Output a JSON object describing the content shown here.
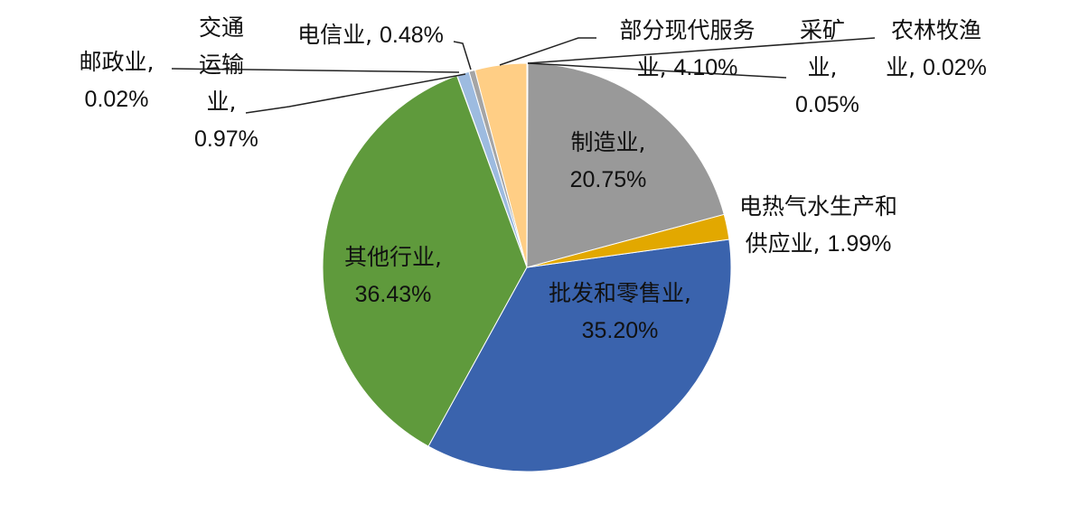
{
  "chart_data": {
    "type": "pie",
    "categories": [
      "农林牧渔业,",
      "采矿业,",
      "制造业,",
      "电热气水生产和供应业,",
      "批发和零售业,",
      "其他行业,",
      "邮政业,",
      "交通运输业,",
      "电信业,",
      "部分现代服务业,"
    ],
    "values": [
      0.02,
      0.05,
      20.75,
      1.99,
      35.2,
      36.43,
      0.02,
      0.97,
      0.48,
      4.1
    ],
    "value_labels": [
      "0.02%",
      "0.05%",
      "20.75%",
      "1.99%",
      "35.20%",
      "36.43%",
      "0.02%",
      "0.97%",
      "0.48%",
      "4.10%"
    ],
    "colors": [
      "#5B9BD5",
      "#70AD47",
      "#999999",
      "#E2A800",
      "#3A63AD",
      "#5F9A3C",
      "#264478",
      "#9DBBE0",
      "#A5A5A5",
      "#FFCE85"
    ]
  }
}
